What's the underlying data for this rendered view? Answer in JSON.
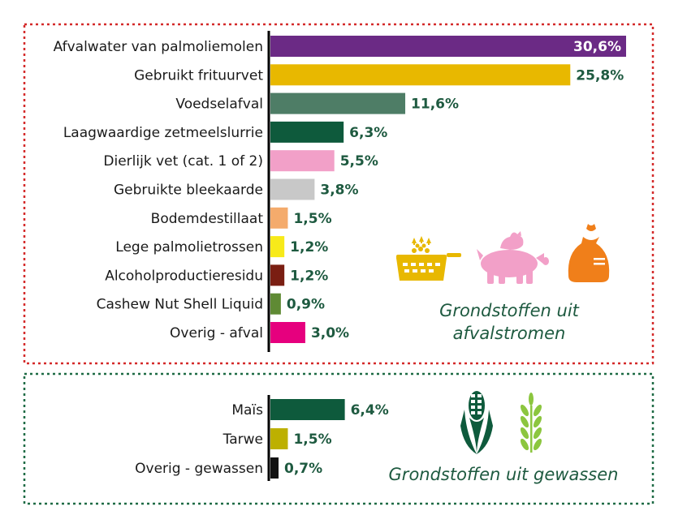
{
  "colors": {
    "waste_border": "#d42a2a",
    "crops_border": "#1e6b45",
    "value_text": "#1e5a40",
    "axis": "#000000"
  },
  "chart_data": [
    {
      "type": "bar",
      "orientation": "horizontal",
      "section_title": [
        "Grondstoffen uit",
        "afvalstromen"
      ],
      "categories": [
        "Afvalwater van palmoliemolen",
        "Gebruikt frituurvet",
        "Voedselafval",
        "Laagwaardige zetmeelslurrie",
        "Dierlijk vet (cat. 1 of 2)",
        "Gebruikte bleekaarde",
        "Bodemdestillaat",
        "Lege palmolietrossen",
        "Alcoholproductieresidu",
        "Cashew Nut Shell Liquid",
        "Overig - afval"
      ],
      "values": [
        30.6,
        25.8,
        11.6,
        6.3,
        5.5,
        3.8,
        1.5,
        1.2,
        1.2,
        0.9,
        3.0
      ],
      "value_labels": [
        "30,6%",
        "25,8%",
        "11,6%",
        "6,3%",
        "5,5%",
        "3,8%",
        "1,5%",
        "1,2%",
        "1,2%",
        "0,9%",
        "3,0%"
      ],
      "bar_colors": [
        "#6b2a85",
        "#e8b800",
        "#4e7d66",
        "#0e5a3c",
        "#f2a0c8",
        "#c8c8c8",
        "#f4ab6c",
        "#f7ea1a",
        "#7a1e12",
        "#5f8a34",
        "#e6007e"
      ],
      "icons": [
        "fryer-icon",
        "pig-chicken-icon",
        "waste-bag-icon"
      ],
      "icon_colors": [
        "#e8b800",
        "#f2a0c8",
        "#f07f1a"
      ]
    },
    {
      "type": "bar",
      "orientation": "horizontal",
      "section_title": [
        "Grondstoffen uit gewassen"
      ],
      "categories": [
        "Maïs",
        "Tarwe",
        "Overig - gewassen"
      ],
      "values": [
        6.4,
        1.5,
        0.7
      ],
      "value_labels": [
        "6,4%",
        "1,5%",
        "0,7%"
      ],
      "bar_colors": [
        "#0e5a3c",
        "#bdb000",
        "#111111"
      ],
      "icons": [
        "corn-icon",
        "wheat-icon"
      ],
      "icon_colors": [
        "#0e5a3c",
        "#8cc63f"
      ]
    }
  ]
}
